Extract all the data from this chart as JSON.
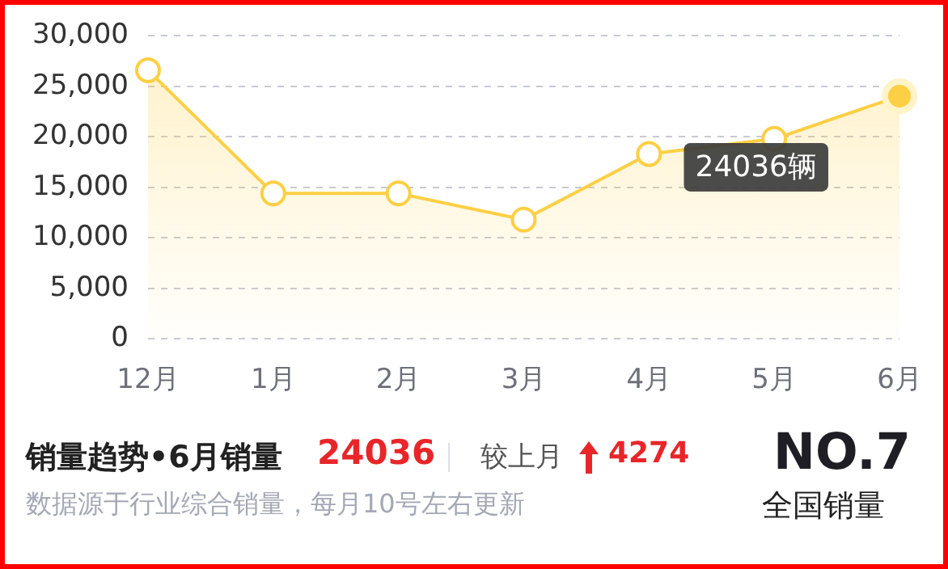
{
  "chart_data": {
    "type": "area",
    "title": "销量趋势•6月销量",
    "categories": [
      "12月",
      "1月",
      "2月",
      "3月",
      "4月",
      "5月",
      "6月"
    ],
    "series": [
      {
        "color": "#fdcf44",
        "values": [
          26600,
          14400,
          14400,
          11800,
          18300,
          19800,
          24036
        ]
      }
    ],
    "ylim": [
      0,
      30000
    ],
    "yticks": [
      0,
      {
        "value": 5000,
        "label": "5,000"
      },
      {
        "value": 10000,
        "label": "10,000"
      },
      {
        "value": 15000,
        "label": "15,000"
      },
      {
        "value": 20000,
        "label": "20,000"
      },
      {
        "value": 25000,
        "label": "25,000"
      },
      {
        "value": 30000,
        "label": "30,000"
      }
    ],
    "grid": "y",
    "marker": "circle",
    "legend": false,
    "annotations": [
      "24036辆",
      "24036",
      "较上月",
      "4274",
      "数据源于行业综合销量，每月10号左右更新",
      "NO.7",
      "全国销量"
    ]
  }
}
